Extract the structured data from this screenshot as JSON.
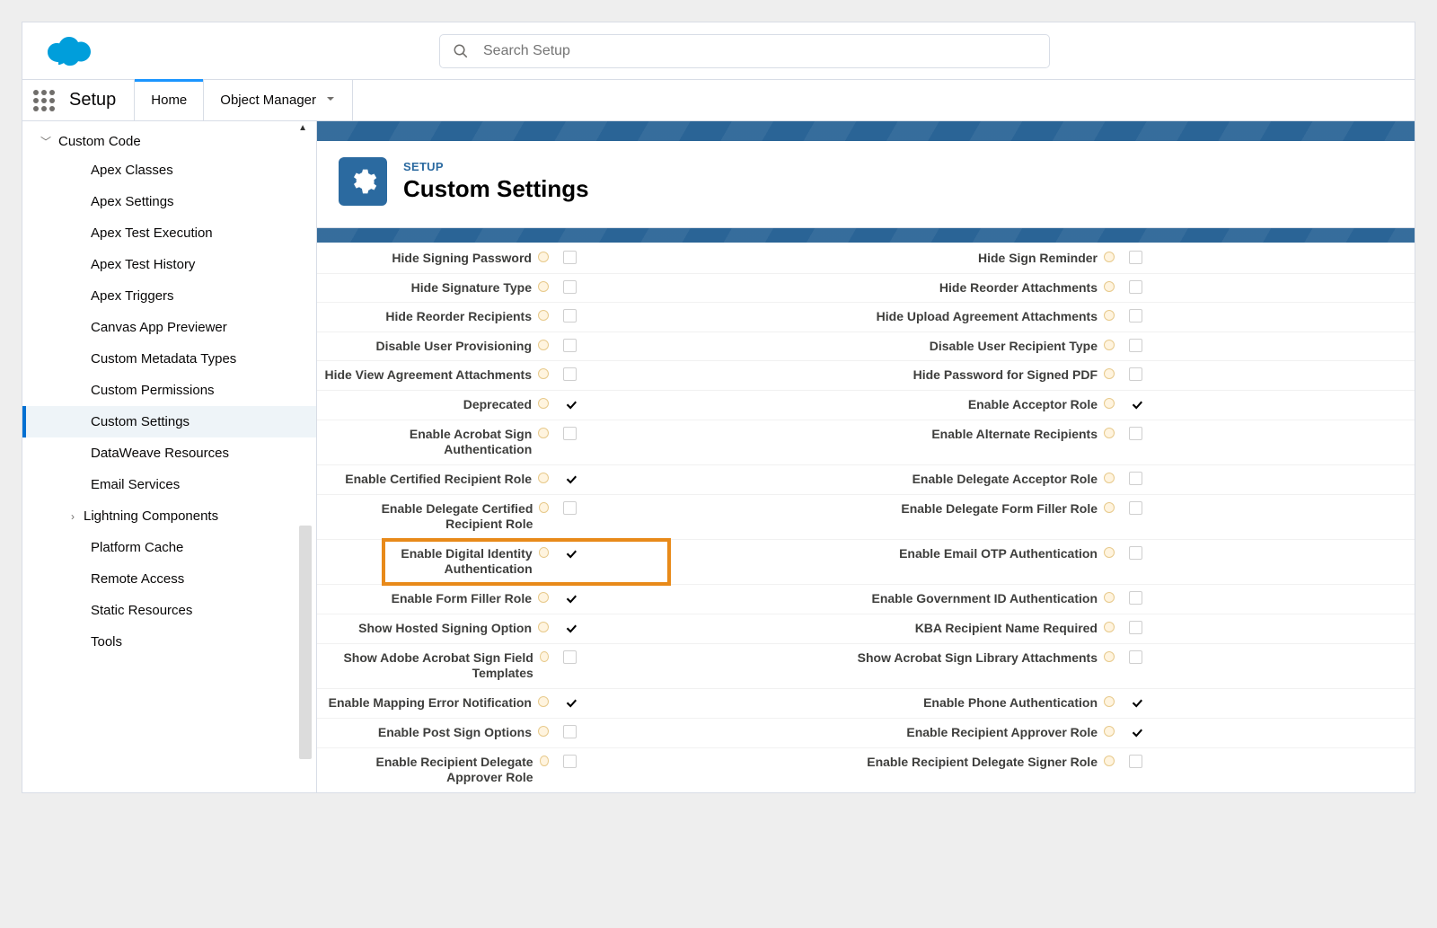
{
  "colors": {
    "brand_blue": "#0070d2",
    "cloud_blue": "#009edb",
    "banner_blue": "#2a6496",
    "badge_blue": "#2b6aa0",
    "highlight_orange": "#e88a1a",
    "page_bg": "#eeeeee",
    "border_gray": "#d8dde6",
    "text_primary": "#080707",
    "text_muted": "#706e6b"
  },
  "header": {
    "search_placeholder": "Search Setup"
  },
  "nav": {
    "app_title": "Setup",
    "tabs": [
      {
        "id": "home",
        "label": "Home",
        "active": true
      },
      {
        "id": "object-manager",
        "label": "Object Manager",
        "active": false,
        "has_dropdown": true
      }
    ]
  },
  "sidebar": {
    "section_label": "Custom Code",
    "items": [
      {
        "id": "apex-classes",
        "label": "Apex Classes"
      },
      {
        "id": "apex-settings",
        "label": "Apex Settings"
      },
      {
        "id": "apex-test-execution",
        "label": "Apex Test Execution"
      },
      {
        "id": "apex-test-history",
        "label": "Apex Test History"
      },
      {
        "id": "apex-triggers",
        "label": "Apex Triggers"
      },
      {
        "id": "canvas-app-previewer",
        "label": "Canvas App Previewer"
      },
      {
        "id": "custom-metadata-types",
        "label": "Custom Metadata Types"
      },
      {
        "id": "custom-permissions",
        "label": "Custom Permissions"
      },
      {
        "id": "custom-settings",
        "label": "Custom Settings",
        "selected": true
      },
      {
        "id": "dataweave-resources",
        "label": "DataWeave Resources"
      },
      {
        "id": "email-services",
        "label": "Email Services"
      },
      {
        "id": "lightning-components",
        "label": "Lightning Components",
        "expandable": true
      },
      {
        "id": "platform-cache",
        "label": "Platform Cache"
      },
      {
        "id": "remote-access",
        "label": "Remote Access"
      },
      {
        "id": "static-resources",
        "label": "Static Resources"
      },
      {
        "id": "tools",
        "label": "Tools"
      }
    ]
  },
  "main": {
    "eyebrow": "SETUP",
    "title": "Custom Settings",
    "highlighted_left_field": "Enable Digital Identity Authentication",
    "rows": [
      {
        "left_label": "Hide Signing Password",
        "left_checked": false,
        "right_label": "Hide Sign Reminder",
        "right_checked": false
      },
      {
        "left_label": "Hide Signature Type",
        "left_checked": false,
        "right_label": "Hide Reorder Attachments",
        "right_checked": false
      },
      {
        "left_label": "Hide Reorder Recipients",
        "left_checked": false,
        "right_label": "Hide Upload Agreement Attachments",
        "right_checked": false
      },
      {
        "left_label": "Disable User Provisioning",
        "left_checked": false,
        "right_label": "Disable User Recipient Type",
        "right_checked": false
      },
      {
        "left_label": "Hide View Agreement Attachments",
        "left_checked": false,
        "right_label": "Hide Password for Signed PDF",
        "right_checked": false
      },
      {
        "left_label": "Deprecated",
        "left_checked": true,
        "right_label": "Enable Acceptor Role",
        "right_checked": true
      },
      {
        "left_label": "Enable Acrobat Sign Authentication",
        "left_checked": false,
        "right_label": "Enable Alternate Recipients",
        "right_checked": false
      },
      {
        "left_label": "Enable Certified Recipient Role",
        "left_checked": true,
        "right_label": "Enable Delegate Acceptor Role",
        "right_checked": false
      },
      {
        "left_label": "Enable Delegate Certified Recipient Role",
        "left_checked": false,
        "right_label": "Enable Delegate Form Filler Role",
        "right_checked": false
      },
      {
        "left_label": "Enable Digital Identity Authentication",
        "left_checked": true,
        "right_label": "Enable Email OTP Authentication",
        "right_checked": false,
        "highlight": true
      },
      {
        "left_label": "Enable Form Filler Role",
        "left_checked": true,
        "right_label": "Enable Government ID Authentication",
        "right_checked": false
      },
      {
        "left_label": "Show Hosted Signing Option",
        "left_checked": true,
        "right_label": "KBA Recipient Name Required",
        "right_checked": false
      },
      {
        "left_label": "Show Adobe Acrobat Sign Field Templates",
        "left_checked": false,
        "right_label": "Show Acrobat Sign Library Attachments",
        "right_checked": false
      },
      {
        "left_label": "Enable Mapping Error Notification",
        "left_checked": true,
        "right_label": "Enable Phone Authentication",
        "right_checked": true
      },
      {
        "left_label": "Enable Post Sign Options",
        "left_checked": false,
        "right_label": "Enable Recipient Approver Role",
        "right_checked": true
      },
      {
        "left_label": "Enable Recipient Delegate Approver Role",
        "left_checked": false,
        "right_label": "Enable Recipient Delegate Signer Role",
        "right_checked": false
      }
    ]
  }
}
